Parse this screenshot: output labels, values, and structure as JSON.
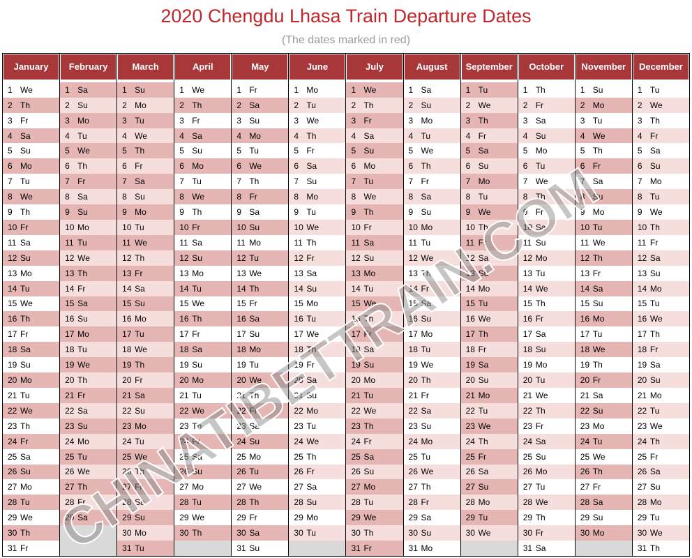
{
  "title": "2020 Chengdu Lhasa Train Departure Dates",
  "subtitle": "(The dates marked in red)",
  "watermark": "CHINATIBETTRAIN.COM",
  "colors": {
    "header": "#a8373a",
    "marked": "#e6b6b5",
    "stripe": "#f6dedd",
    "title": "#c0262b"
  },
  "months": [
    {
      "name": "January",
      "days": 31,
      "start": 2,
      "marked": [
        2,
        4,
        6,
        8,
        10,
        12,
        14,
        16,
        18,
        20,
        22,
        24,
        26,
        28,
        30
      ]
    },
    {
      "name": "February",
      "days": 29,
      "start": 5,
      "marked": [
        1,
        3,
        5,
        7,
        9,
        11,
        13,
        15,
        17,
        19,
        21,
        23,
        25,
        27,
        29
      ]
    },
    {
      "name": "March",
      "days": 31,
      "start": 6,
      "marked": [
        1,
        3,
        5,
        7,
        9,
        11,
        13,
        15,
        17,
        19,
        21,
        23,
        25,
        27,
        29,
        31
      ]
    },
    {
      "name": "April",
      "days": 30,
      "start": 2,
      "marked": [
        2,
        4,
        6,
        8,
        10,
        12,
        14,
        16,
        18,
        20,
        22,
        24,
        26,
        28,
        30
      ]
    },
    {
      "name": "May",
      "days": 31,
      "start": 4,
      "marked": [
        2,
        4,
        6,
        8,
        10,
        12,
        14,
        16,
        18,
        20,
        22,
        24,
        26,
        28,
        30
      ]
    },
    {
      "name": "June",
      "days": 30,
      "start": 0,
      "marked": []
    },
    {
      "name": "July",
      "days": 31,
      "start": 2,
      "marked": [
        1,
        3,
        5,
        7,
        9,
        11,
        13,
        15,
        17,
        19,
        21,
        23,
        25,
        27,
        29,
        31
      ]
    },
    {
      "name": "August",
      "days": 31,
      "start": 5,
      "marked": []
    },
    {
      "name": "September",
      "days": 30,
      "start": 1,
      "marked": [
        1,
        3,
        5,
        7,
        9,
        11,
        13,
        15,
        17,
        19,
        21,
        23,
        25,
        27,
        29
      ]
    },
    {
      "name": "October",
      "days": 31,
      "start": 3,
      "marked": []
    },
    {
      "name": "November",
      "days": 30,
      "start": 6,
      "marked": [
        2,
        4,
        6,
        8,
        10,
        12,
        14,
        16,
        18,
        20,
        22,
        24,
        26,
        28,
        30
      ]
    },
    {
      "name": "December",
      "days": 31,
      "start": 1,
      "marked": []
    }
  ],
  "weekday_abbr": [
    "Mo",
    "Tu",
    "We",
    "Th",
    "Fr",
    "Sa",
    "Su"
  ]
}
